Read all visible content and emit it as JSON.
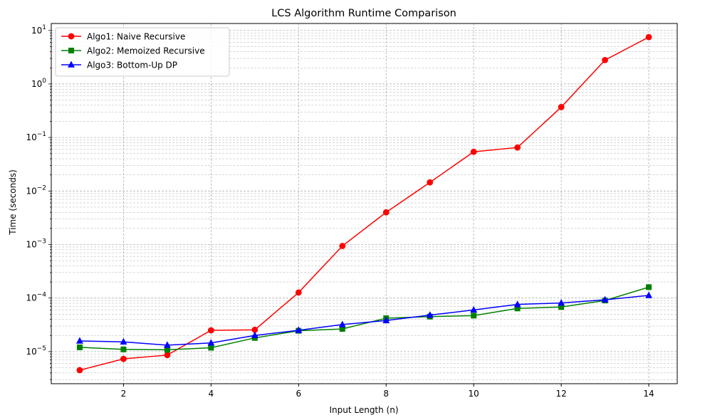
{
  "chart_data": {
    "type": "line",
    "title": "LCS Algorithm Runtime Comparison",
    "xlabel": "Input Length (n)",
    "ylabel": "Time (seconds)",
    "yscale": "log",
    "xlim": [
      0.35,
      14.65
    ],
    "ylim_exponent": [
      -5.6,
      1.13
    ],
    "x_ticks": [
      2,
      4,
      6,
      8,
      10,
      12,
      14
    ],
    "y_ticks": [
      {
        "exp": -5,
        "label": "10",
        "sup": "−5"
      },
      {
        "exp": -4,
        "label": "10",
        "sup": "−4"
      },
      {
        "exp": -3,
        "label": "10",
        "sup": "−3"
      },
      {
        "exp": -2,
        "label": "10",
        "sup": "−2"
      },
      {
        "exp": -1,
        "label": "10",
        "sup": "−1"
      },
      {
        "exp": 0,
        "label": "10",
        "sup": "0"
      },
      {
        "exp": 1,
        "label": "10",
        "sup": "1"
      }
    ],
    "grid": true,
    "legend_position": "top-left",
    "x": [
      1,
      2,
      3,
      4,
      5,
      6,
      7,
      8,
      9,
      10,
      11,
      12,
      13,
      14
    ],
    "series": [
      {
        "name": "Algo1: Naive Recursive",
        "color": "#ff0000",
        "marker": "circle",
        "values": [
          4.5e-06,
          7.3e-06,
          8.6e-06,
          2.5e-05,
          2.55e-05,
          0.000127,
          0.00094,
          0.004,
          0.0145,
          0.054,
          0.065,
          0.37,
          2.8,
          7.5
        ]
      },
      {
        "name": "Algo2: Memoized Recursive",
        "color": "#008000",
        "marker": "square",
        "values": [
          1.2e-05,
          1.1e-05,
          1.08e-05,
          1.18e-05,
          1.8e-05,
          2.45e-05,
          2.65e-05,
          4.2e-05,
          4.5e-05,
          4.7e-05,
          6.4e-05,
          6.8e-05,
          9e-05,
          0.00016
        ]
      },
      {
        "name": "Algo3: Bottom-Up DP",
        "color": "#0000ff",
        "marker": "triangle",
        "values": [
          1.58e-05,
          1.52e-05,
          1.32e-05,
          1.45e-05,
          2e-05,
          2.5e-05,
          3.2e-05,
          3.8e-05,
          4.8e-05,
          6e-05,
          7.6e-05,
          8.1e-05,
          9.3e-05,
          0.000112
        ]
      }
    ]
  }
}
